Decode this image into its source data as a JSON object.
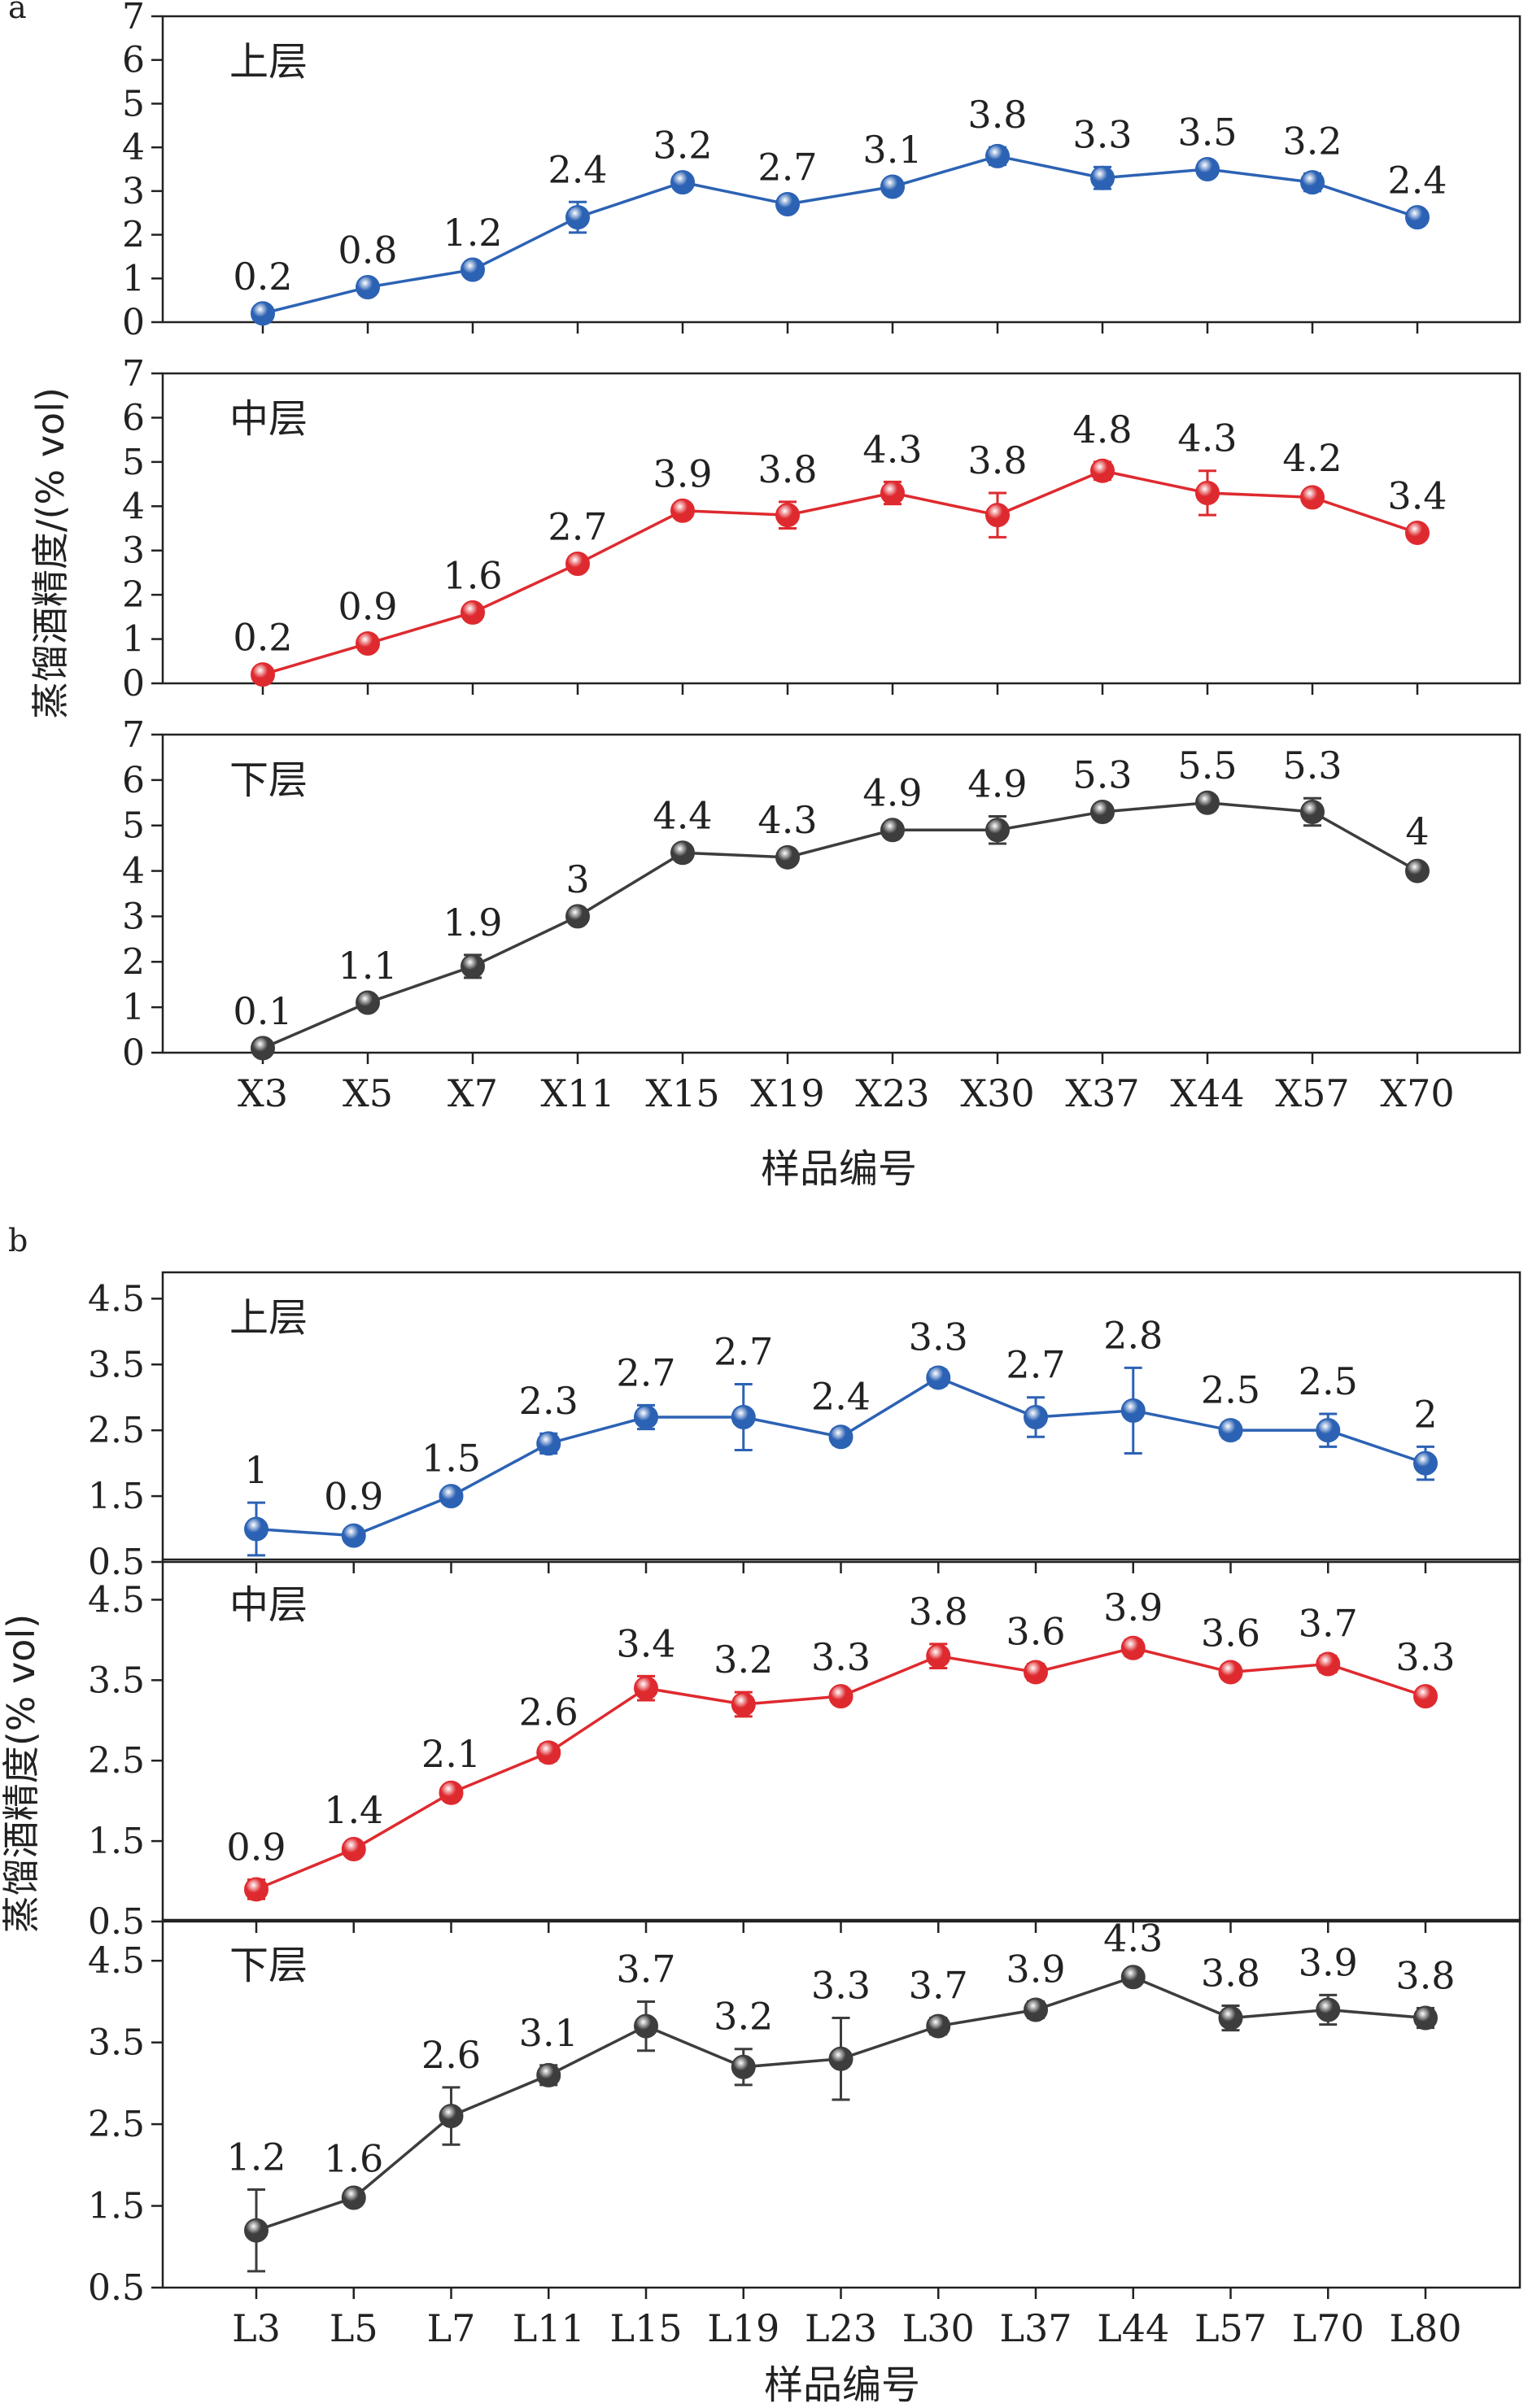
{
  "figure": {
    "panels": [
      {
        "letter": "a",
        "ylabel": "蒸馏酒精度/(% vol)",
        "xlabel": "样品编号"
      },
      {
        "letter": "b",
        "ylabel": "蒸馏酒精度(% vol)",
        "xlabel": "样品编号"
      }
    ]
  },
  "colors": {
    "upper": "#2c62b4",
    "middle": "#de2a2f",
    "lower": "#3d3d3d",
    "axis": "#222222"
  },
  "chart_data": [
    {
      "type": "line",
      "panel": "a",
      "layer_label": "上层",
      "color_key": "upper",
      "categories": [
        "X3",
        "X5",
        "X7",
        "X11",
        "X15",
        "X19",
        "X23",
        "X30",
        "X37",
        "X44",
        "X57",
        "X70"
      ],
      "values": [
        0.2,
        0.8,
        1.2,
        2.4,
        3.2,
        2.7,
        3.1,
        3.8,
        3.3,
        3.5,
        3.2,
        2.4
      ],
      "labels": [
        "0.2",
        "0.8",
        "1.2",
        "2.4",
        "3.2",
        "2.7",
        "3.1",
        "3.8",
        "3.3",
        "3.5",
        "3.2",
        "2.4"
      ],
      "errors": [
        0.1,
        0.1,
        0.1,
        0.35,
        0.1,
        0.1,
        0.1,
        0.2,
        0.25,
        0.1,
        0.2,
        0.1
      ],
      "ylim": [
        0,
        7
      ],
      "yticks": [
        0,
        1,
        2,
        3,
        4,
        5,
        6,
        7
      ],
      "show_xticklabels": false
    },
    {
      "type": "line",
      "panel": "a",
      "layer_label": "中层",
      "color_key": "middle",
      "categories": [
        "X3",
        "X5",
        "X7",
        "X11",
        "X15",
        "X19",
        "X23",
        "X30",
        "X37",
        "X44",
        "X57",
        "X70"
      ],
      "values": [
        0.2,
        0.9,
        1.6,
        2.7,
        3.9,
        3.8,
        4.3,
        3.8,
        4.8,
        4.3,
        4.2,
        3.4
      ],
      "labels": [
        "0.2",
        "0.9",
        "1.6",
        "2.7",
        "3.9",
        "3.8",
        "4.3",
        "3.8",
        "4.8",
        "4.3",
        "4.2",
        "3.4"
      ],
      "errors": [
        0.1,
        0.1,
        0.1,
        0.1,
        0.1,
        0.3,
        0.25,
        0.5,
        0.2,
        0.5,
        0.15,
        0.1
      ],
      "ylim": [
        0,
        7
      ],
      "yticks": [
        0,
        1,
        2,
        3,
        4,
        5,
        6,
        7
      ],
      "show_xticklabels": false
    },
    {
      "type": "line",
      "panel": "a",
      "layer_label": "下层",
      "color_key": "lower",
      "categories": [
        "X3",
        "X5",
        "X7",
        "X11",
        "X15",
        "X19",
        "X23",
        "X30",
        "X37",
        "X44",
        "X57",
        "X70"
      ],
      "values": [
        0.1,
        1.1,
        1.9,
        3.0,
        4.4,
        4.3,
        4.9,
        4.9,
        5.3,
        5.5,
        5.3,
        4.0
      ],
      "labels": [
        "0.1",
        "1.1",
        "1.9",
        "3",
        "4.4",
        "4.3",
        "4.9",
        "4.9",
        "5.3",
        "5.5",
        "5.3",
        "4"
      ],
      "errors": [
        0.1,
        0.1,
        0.25,
        0.1,
        0.1,
        0.1,
        0.1,
        0.3,
        0.1,
        0.1,
        0.3,
        0.15
      ],
      "ylim": [
        0,
        7
      ],
      "yticks": [
        0,
        1,
        2,
        3,
        4,
        5,
        6,
        7
      ],
      "show_xticklabels": true
    },
    {
      "type": "line",
      "panel": "b",
      "layer_label": "上层",
      "color_key": "upper",
      "categories": [
        "L3",
        "L5",
        "L7",
        "L11",
        "L15",
        "L19",
        "L23",
        "L30",
        "L37",
        "L44",
        "L57",
        "L70",
        "L80"
      ],
      "values": [
        1.0,
        0.9,
        1.5,
        2.3,
        2.7,
        2.7,
        2.4,
        3.3,
        2.7,
        2.8,
        2.5,
        2.5,
        2.0
      ],
      "labels": [
        "1",
        "0.9",
        "1.5",
        "2.3",
        "2.7",
        "2.7",
        "2.4",
        "3.3",
        "2.7",
        "2.8",
        "2.5",
        "2.5",
        "2"
      ],
      "errors": [
        0.4,
        0.1,
        0.08,
        0.15,
        0.18,
        0.5,
        0.12,
        0.12,
        0.3,
        0.65,
        0.12,
        0.25,
        0.25
      ],
      "ylim": [
        0.5,
        4.9
      ],
      "yticks": [
        0.5,
        1.5,
        2.5,
        3.5,
        4.5
      ],
      "show_xticklabels": false
    },
    {
      "type": "line",
      "panel": "b",
      "layer_label": "中层",
      "color_key": "middle",
      "categories": [
        "L3",
        "L5",
        "L7",
        "L11",
        "L15",
        "L19",
        "L23",
        "L30",
        "L37",
        "L44",
        "L57",
        "L70",
        "L80"
      ],
      "values": [
        0.9,
        1.4,
        2.1,
        2.6,
        3.4,
        3.2,
        3.3,
        3.8,
        3.6,
        3.9,
        3.6,
        3.7,
        3.3
      ],
      "labels": [
        "0.9",
        "1.4",
        "2.1",
        "2.6",
        "3.4",
        "3.2",
        "3.3",
        "3.8",
        "3.6",
        "3.9",
        "3.6",
        "3.7",
        "3.3"
      ],
      "errors": [
        0.12,
        0.08,
        0.08,
        0.1,
        0.15,
        0.15,
        0.08,
        0.15,
        0.1,
        0.1,
        0.08,
        0.1,
        0.08
      ],
      "ylim": [
        0.5,
        5.0
      ],
      "yticks": [
        0.5,
        1.5,
        2.5,
        3.5,
        4.5
      ],
      "show_xticklabels": false
    },
    {
      "type": "line",
      "panel": "b",
      "layer_label": "下层",
      "color_key": "lower",
      "categories": [
        "L3",
        "L5",
        "L7",
        "L11",
        "L15",
        "L19",
        "L23",
        "L30",
        "L37",
        "L44",
        "L57",
        "L70",
        "L80"
      ],
      "values": [
        1.2,
        1.6,
        2.6,
        3.1,
        3.7,
        3.2,
        3.3,
        3.7,
        3.9,
        4.3,
        3.8,
        3.9,
        3.8
      ],
      "labels": [
        "1.2",
        "1.6",
        "2.6",
        "3.1",
        "3.7",
        "3.2",
        "3.3",
        "3.7",
        "3.9",
        "4.3",
        "3.8",
        "3.9",
        "3.8"
      ],
      "errors": [
        0.5,
        0.08,
        0.35,
        0.12,
        0.3,
        0.22,
        0.5,
        0.1,
        0.1,
        0.08,
        0.15,
        0.18,
        0.12
      ],
      "ylim": [
        0.5,
        5.0
      ],
      "yticks": [
        0.5,
        1.5,
        2.5,
        3.5,
        4.5
      ],
      "show_xticklabels": true
    }
  ]
}
